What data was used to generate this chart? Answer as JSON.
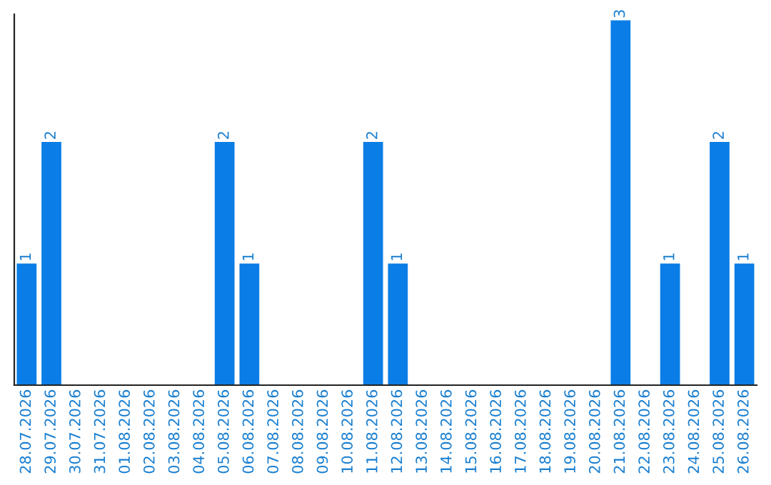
{
  "chart_data": {
    "type": "bar",
    "categories": [
      "28.07.2026",
      "29.07.2026",
      "30.07.2026",
      "31.07.2026",
      "01.08.2026",
      "02.08.2026",
      "03.08.2026",
      "04.08.2026",
      "05.08.2026",
      "06.08.2026",
      "07.08.2026",
      "08.08.2026",
      "09.08.2026",
      "10.08.2026",
      "11.08.2026",
      "12.08.2026",
      "13.08.2026",
      "14.08.2026",
      "15.08.2026",
      "16.08.2026",
      "17.08.2026",
      "18.08.2026",
      "19.08.2026",
      "20.08.2026",
      "21.08.2026",
      "22.08.2026",
      "23.08.2026",
      "24.08.2026",
      "25.08.2026",
      "26.08.2026"
    ],
    "values": [
      1,
      2,
      0,
      0,
      0,
      0,
      0,
      0,
      2,
      1,
      0,
      0,
      0,
      0,
      2,
      1,
      0,
      0,
      0,
      0,
      0,
      0,
      0,
      0,
      3,
      0,
      1,
      0,
      2,
      1
    ],
    "value_labels": [
      "1",
      "2",
      null,
      null,
      null,
      null,
      null,
      null,
      "2",
      "1",
      null,
      null,
      null,
      null,
      "2",
      "1",
      null,
      null,
      null,
      null,
      null,
      null,
      null,
      null,
      "3",
      null,
      "1",
      null,
      "2",
      "1"
    ],
    "color": "#0a7de6",
    "ylim": [
      0,
      3.05
    ],
    "tick_labels": "x",
    "grid": false,
    "legend": false
  }
}
